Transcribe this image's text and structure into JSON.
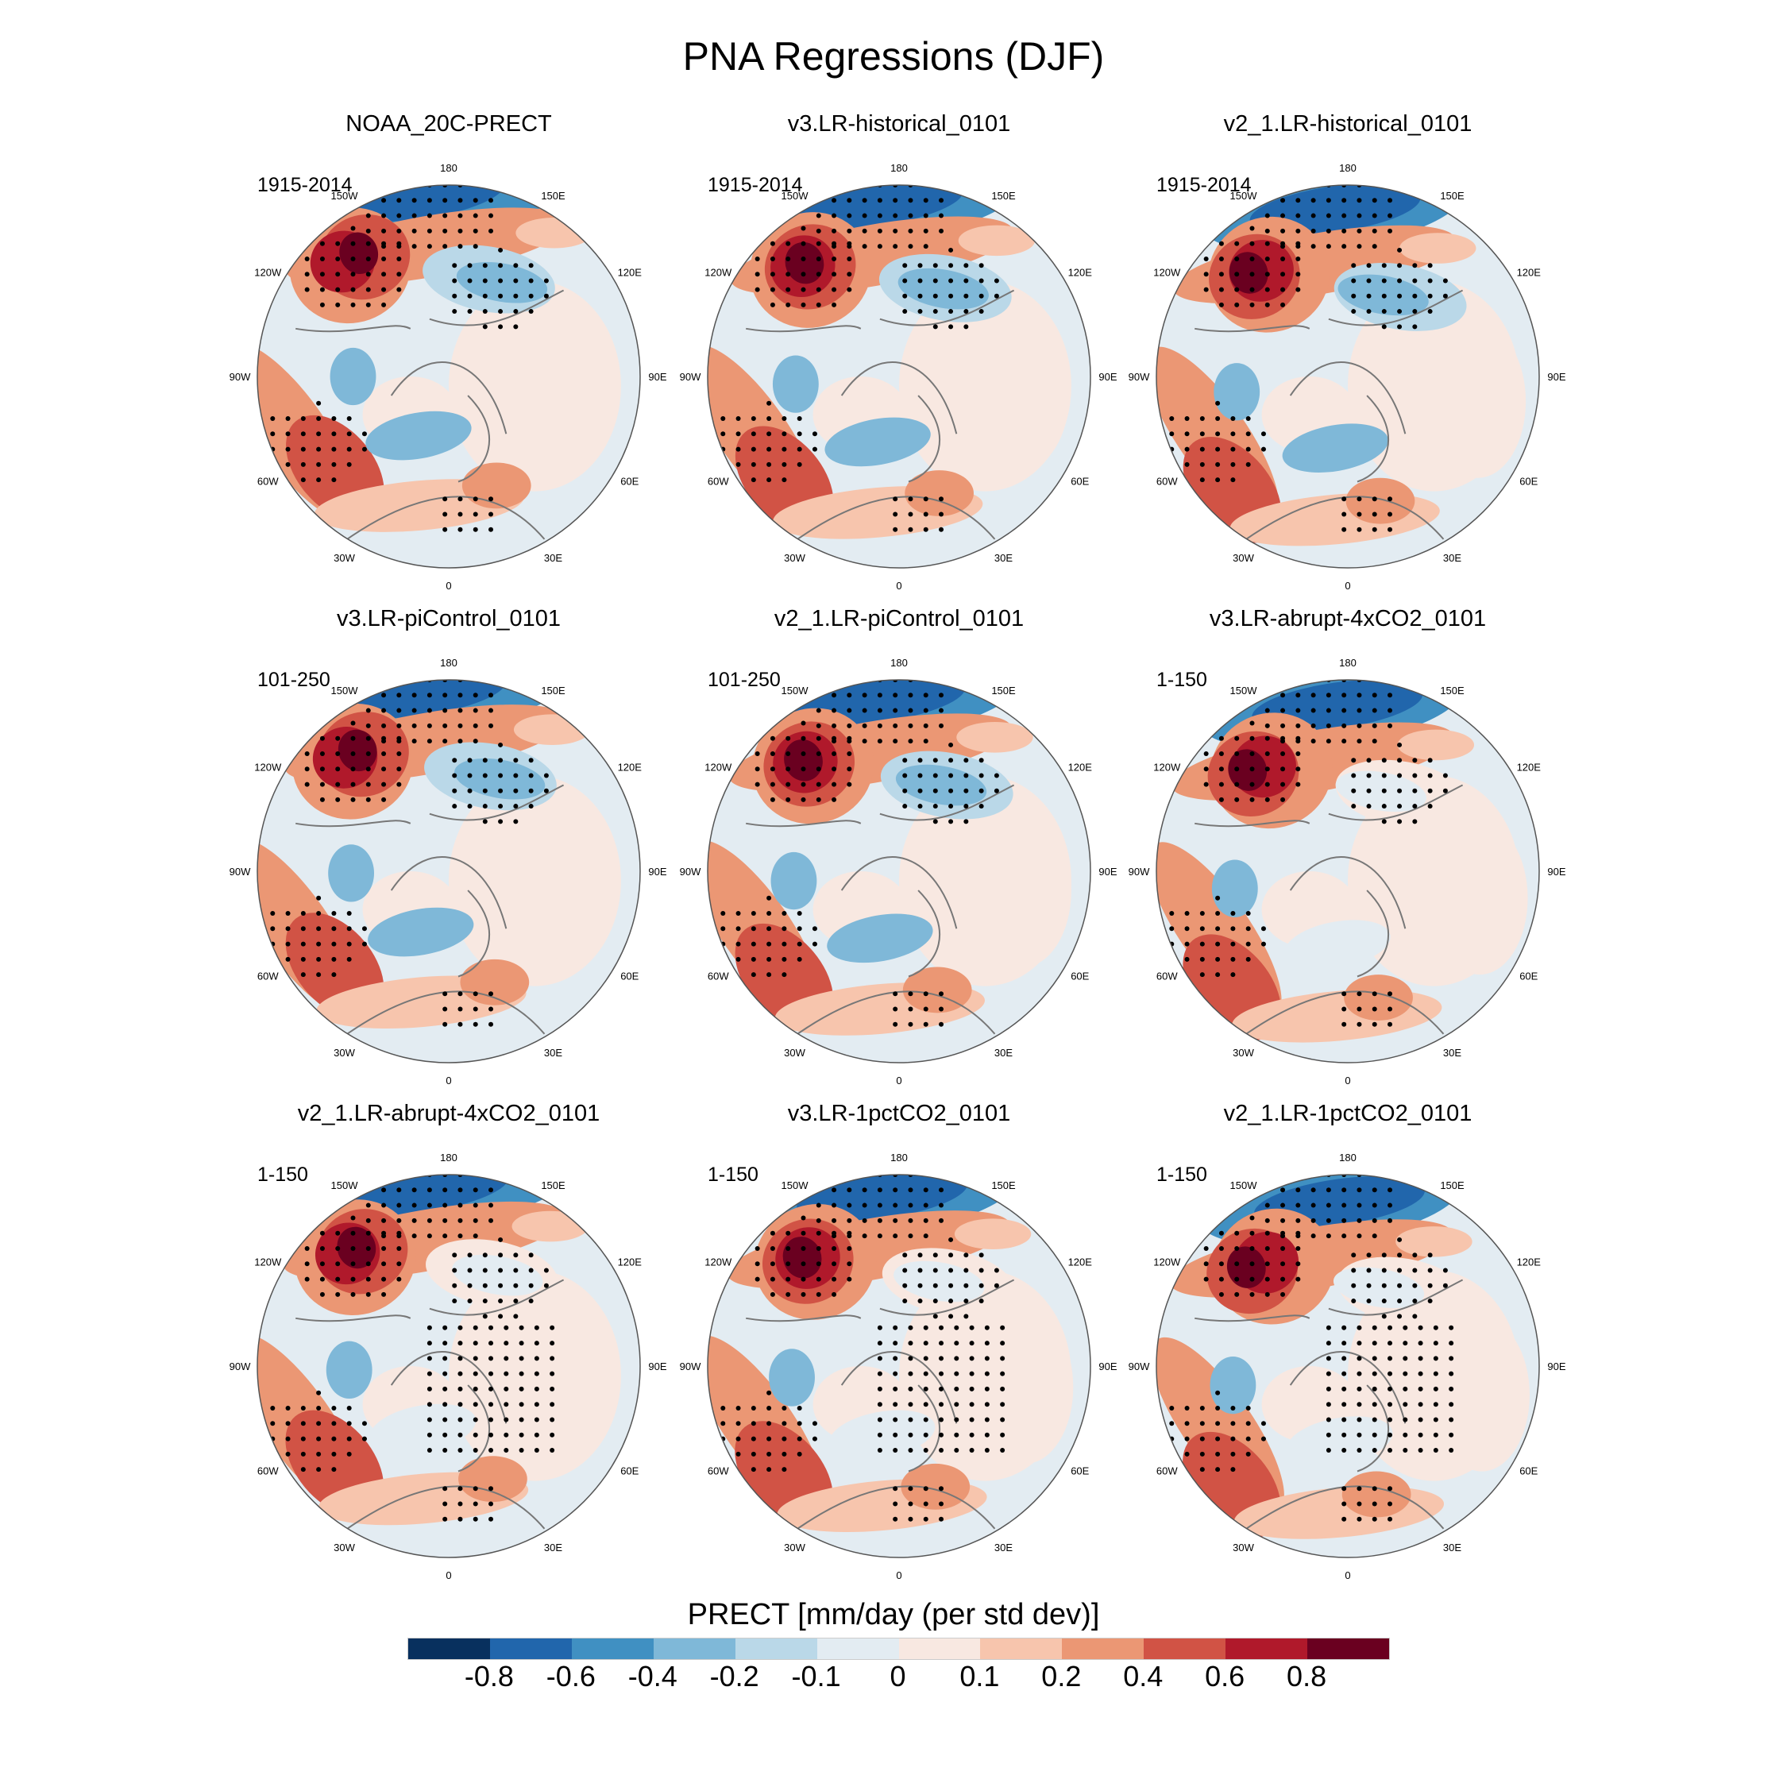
{
  "title": "PNA Regressions (DJF)",
  "panels": [
    {
      "title": "NOAA_20C-PRECT",
      "period": "1915-2014"
    },
    {
      "title": "v3.LR-historical_0101",
      "period": "1915-2014"
    },
    {
      "title": "v2_1.LR-historical_0101",
      "period": "1915-2014"
    },
    {
      "title": "v3.LR-piControl_0101",
      "period": "101-250"
    },
    {
      "title": "v2_1.LR-piControl_0101",
      "period": "101-250"
    },
    {
      "title": "v3.LR-abrupt-4xCO2_0101",
      "period": "1-150"
    },
    {
      "title": "v2_1.LR-abrupt-4xCO2_0101",
      "period": "1-150"
    },
    {
      "title": "v3.LR-1pctCO2_0101",
      "period": "1-150"
    },
    {
      "title": "v2_1.LR-1pctCO2_0101",
      "period": "1-150"
    }
  ],
  "lon_labels": [
    {
      "text": "0",
      "lon": 0
    },
    {
      "text": "30E",
      "lon": 30
    },
    {
      "text": "60E",
      "lon": 60
    },
    {
      "text": "90E",
      "lon": 90
    },
    {
      "text": "120E",
      "lon": 120
    },
    {
      "text": "150E",
      "lon": 150
    },
    {
      "text": "180",
      "lon": 180
    },
    {
      "text": "150W",
      "lon": -150
    },
    {
      "text": "120W",
      "lon": -120
    },
    {
      "text": "90W",
      "lon": -90
    },
    {
      "text": "60W",
      "lon": -60
    },
    {
      "text": "30W",
      "lon": -30
    }
  ],
  "chart_data": {
    "type": "heatmap",
    "title": "PNA Regressions (DJF)",
    "projection": "north polar stereographic",
    "colorbar": {
      "label": "PRECT [mm/day (per std dev)]",
      "ticks": [
        "-0.8",
        "-0.6",
        "-0.4",
        "-0.2",
        "-0.1",
        "0",
        "0.1",
        "0.2",
        "0.4",
        "0.6",
        "0.8"
      ],
      "levels": [
        -0.8,
        -0.6,
        -0.4,
        -0.2,
        -0.1,
        0,
        0.1,
        0.2,
        0.4,
        0.6,
        0.8
      ],
      "colors": [
        "#08305e",
        "#2166ac",
        "#4090c2",
        "#7fb8d8",
        "#bad8e8",
        "#e3ecf2",
        "#f8e8e1",
        "#f7c5ad",
        "#eb9774",
        "#d15345",
        "#b0192b",
        "#6a0020"
      ]
    }
  }
}
